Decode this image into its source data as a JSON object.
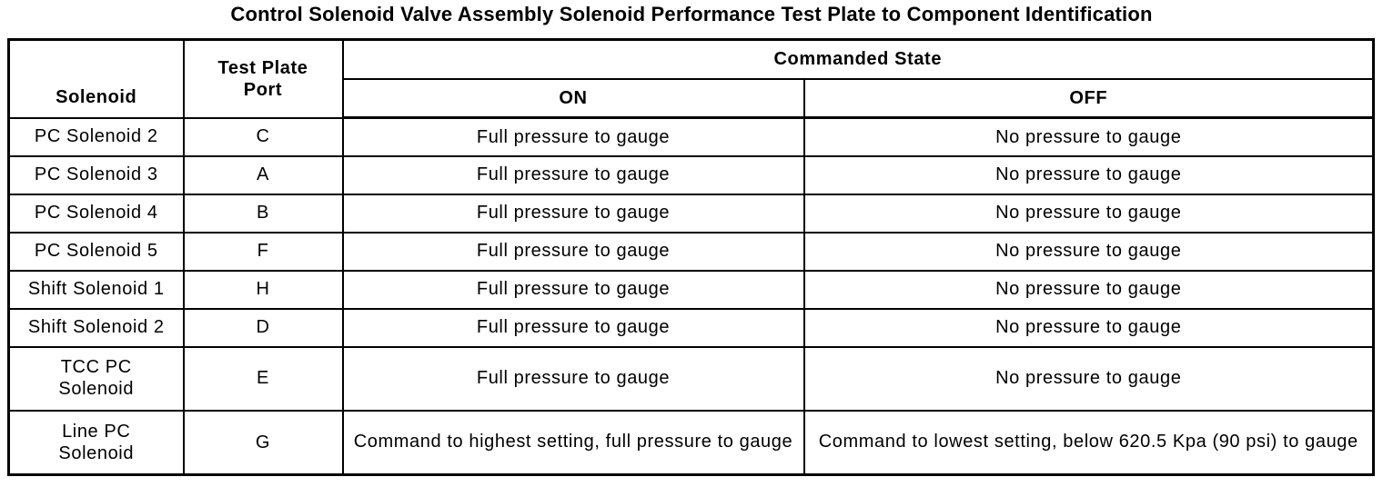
{
  "title": "Control Solenoid Valve Assembly Solenoid Performance Test Plate to Component Identification",
  "colors": {
    "text": "#000000",
    "background": "#ffffff",
    "border": "#000000"
  },
  "table": {
    "headers": {
      "solenoid": "Solenoid",
      "test_plate_port": "Test Plate Port",
      "commanded_state": "Commanded State",
      "on": "ON",
      "off": "OFF"
    },
    "rows": [
      {
        "solenoid": "PC Solenoid 2",
        "port": "C",
        "on": "Full pressure to gauge",
        "off": "No pressure to gauge"
      },
      {
        "solenoid": "PC Solenoid 3",
        "port": "A",
        "on": "Full pressure to gauge",
        "off": "No pressure to gauge"
      },
      {
        "solenoid": "PC Solenoid 4",
        "port": "B",
        "on": "Full pressure to gauge",
        "off": "No pressure to gauge"
      },
      {
        "solenoid": "PC Solenoid 5",
        "port": "F",
        "on": "Full pressure to gauge",
        "off": "No pressure to gauge"
      },
      {
        "solenoid": "Shift Solenoid 1",
        "port": "H",
        "on": "Full pressure to gauge",
        "off": "No pressure to gauge"
      },
      {
        "solenoid": "Shift Solenoid 2",
        "port": "D",
        "on": "Full pressure to gauge",
        "off": "No pressure to gauge"
      },
      {
        "solenoid": "TCC PC Solenoid",
        "port": "E",
        "on": "Full pressure to gauge",
        "off": "No pressure to gauge"
      },
      {
        "solenoid": "Line PC Solenoid",
        "port": "G",
        "on": "Command to highest setting, full pressure to gauge",
        "off": "Command to lowest setting, below 620.5 Kpa (90 psi) to gauge"
      }
    ]
  }
}
